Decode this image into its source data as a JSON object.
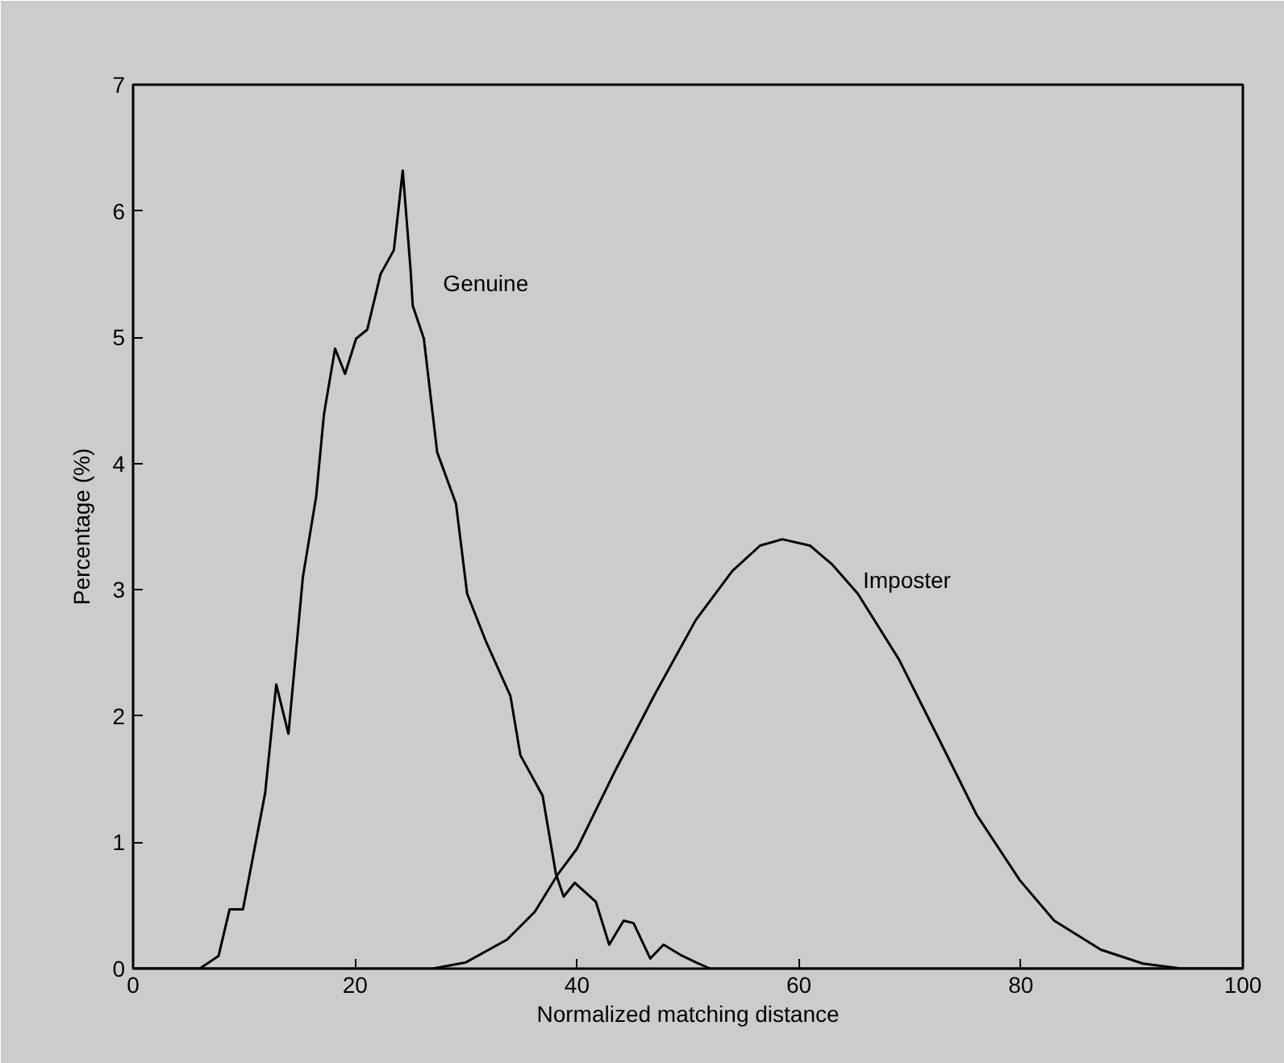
{
  "chart_data": {
    "type": "line",
    "xlabel": "Normalized matching distance",
    "ylabel": "Percentage (%)",
    "xlim": [
      0,
      100
    ],
    "ylim": [
      0,
      7
    ],
    "xticks": [
      0,
      20,
      40,
      60,
      80,
      100
    ],
    "yticks": [
      0,
      1,
      2,
      3,
      4,
      5,
      6,
      7
    ],
    "grid": false,
    "marker": "none",
    "line_style": "solid",
    "series": [
      {
        "name": "Genuine",
        "color": "#000000",
        "x": [
          0,
          6.0,
          7.7,
          8.7,
          9.9,
          11.9,
          12.9,
          14.0,
          15.3,
          16.5,
          17.2,
          18.2,
          19.1,
          20.1,
          21.1,
          22.3,
          23.5,
          24.3,
          25.0,
          25.2,
          26.2,
          27.4,
          29.1,
          30.1,
          31.8,
          34.0,
          34.9,
          36.9,
          38.1,
          38.8,
          39.8,
          41.7,
          42.9,
          44.2,
          45.1,
          46.6,
          47.8,
          49.3,
          50.7,
          52,
          100
        ],
        "values": [
          0,
          0,
          0.1,
          0.47,
          0.47,
          1.39,
          2.25,
          1.86,
          3.1,
          3.74,
          4.39,
          4.91,
          4.71,
          4.99,
          5.06,
          5.5,
          5.69,
          6.32,
          5.54,
          5.25,
          4.99,
          4.09,
          3.68,
          2.97,
          2.59,
          2.16,
          1.69,
          1.37,
          0.75,
          0.57,
          0.68,
          0.53,
          0.19,
          0.38,
          0.36,
          0.08,
          0.19,
          0.11,
          0.05,
          0,
          0
        ]
      },
      {
        "name": "Imposter",
        "color": "#000000",
        "x": [
          0,
          27,
          30,
          33.7,
          36.2,
          38.3,
          40,
          43.4,
          47,
          50.7,
          54,
          56.5,
          58.5,
          61,
          63,
          65.3,
          69,
          72.6,
          76,
          79.9,
          83,
          87.2,
          91,
          94.5,
          100
        ],
        "values": [
          0,
          0,
          0.05,
          0.23,
          0.45,
          0.75,
          0.95,
          1.56,
          2.17,
          2.76,
          3.15,
          3.35,
          3.4,
          3.35,
          3.2,
          2.97,
          2.45,
          1.82,
          1.22,
          0.7,
          0.38,
          0.15,
          0.04,
          0,
          0
        ]
      }
    ]
  }
}
